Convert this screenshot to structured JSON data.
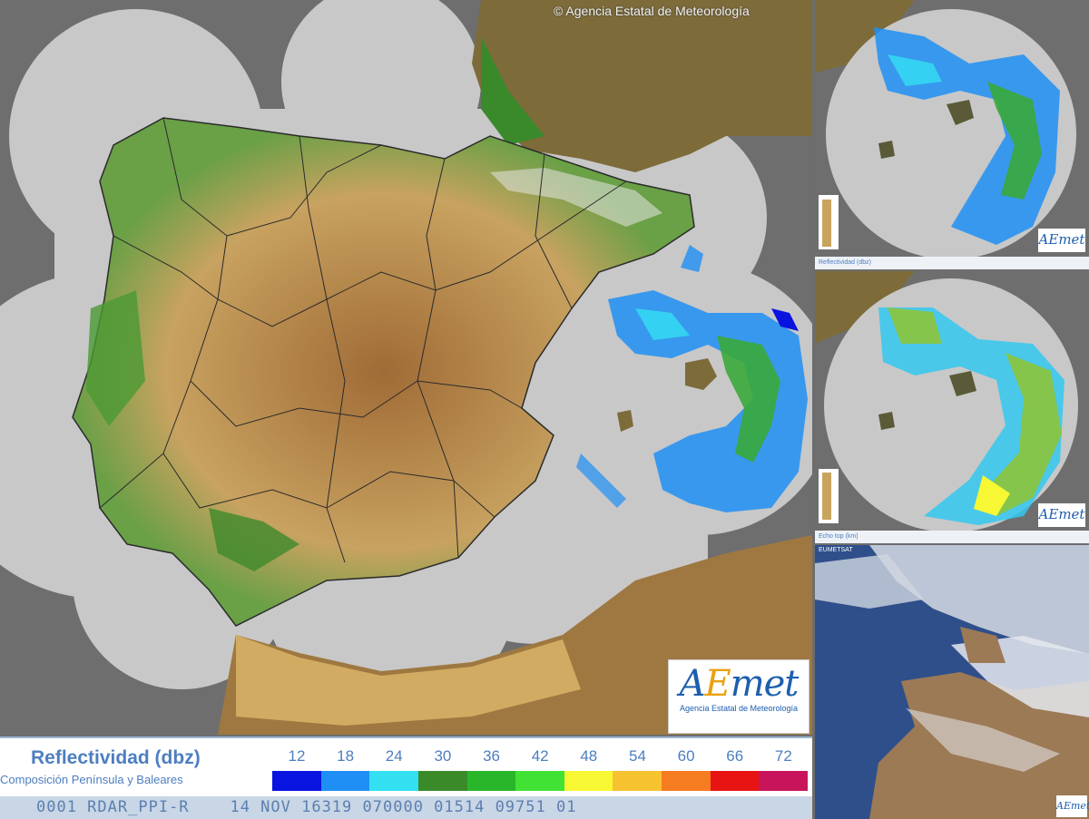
{
  "main_map": {
    "copyright": "© Agencia Estatal de Meteorología",
    "logo_text_a": "A",
    "logo_text_e": "E",
    "logo_text_rest": "met",
    "logo_subtitle": "Agencia Estatal de Meteorología"
  },
  "legend": {
    "title": "Reflectividad (dbz)",
    "subtitle": "Composición Península y Baleares",
    "values": [
      "12",
      "18",
      "24",
      "30",
      "36",
      "42",
      "48",
      "54",
      "60",
      "66",
      "72"
    ],
    "colors": [
      "#0a14e0",
      "#1f8ff5",
      "#33e0f2",
      "#3a8a2a",
      "#2ab62a",
      "#41e234",
      "#f7f734",
      "#f7c230",
      "#f57c20",
      "#e81414",
      "#c8145a"
    ]
  },
  "status_line": "0001 RDAR_PPI-R    14 NOV 16319 070000 01514 09751 01",
  "panels": {
    "radar1_legend": "Reflectividad (dbz)",
    "radar2_legend": "Echo top (km)",
    "sat_tag": "EUMETSAT",
    "mini_logo": "AEmet"
  },
  "colors": {
    "sea_coverage": "#c8c8c8",
    "out_of_range": "#6e6e6e",
    "lowland": "#3f8a2c",
    "plateau": "#d6b06a",
    "highland": "#9c6a35"
  }
}
